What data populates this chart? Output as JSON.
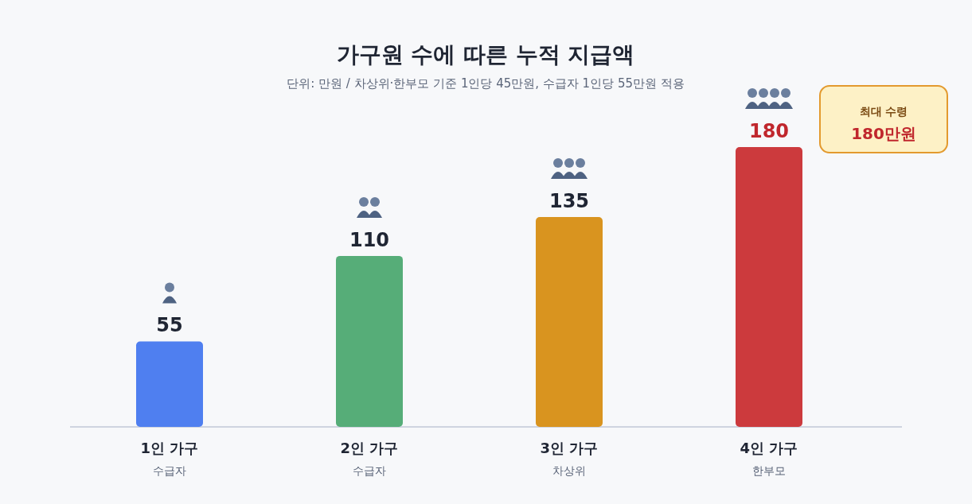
{
  "chart_data": {
    "type": "bar",
    "title": "가구원 수에 따른 누적 지급액",
    "subtitle": "단위: 만원 / 차상위·한부모 기준 1인당 45만원, 수급자 1인당 55만원 적용",
    "categories": [
      "1인 가구",
      "2인 가구",
      "3인 가구",
      "4인 가구"
    ],
    "values": [
      55,
      110,
      135,
      180
    ],
    "colors": [
      "#4f7ff0",
      "#56ad78",
      "#d9941f",
      "#cc3a3d"
    ],
    "data_labels": true,
    "annotations": [
      "수급자",
      "수급자",
      "차상위",
      "한부모",
      "최대 수령",
      "180만원"
    ]
  }
}
